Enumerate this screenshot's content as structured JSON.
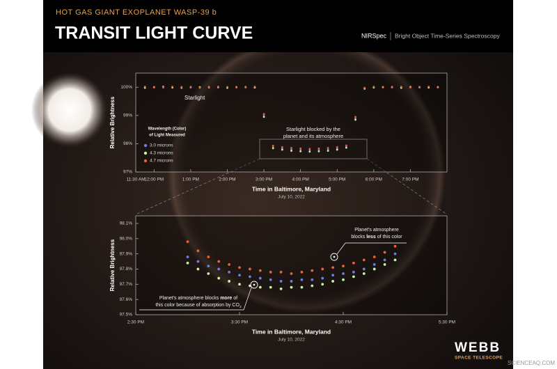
{
  "header": {
    "subtitle": "HOT GAS GIANT EXOPLANET WASP-39 b",
    "title": "TRANSIT LIGHT CURVE",
    "instrument": "NIRSpec",
    "mode": "Bright Object Time-Series Spectroscopy"
  },
  "logo": {
    "name": "WEBB",
    "tagline": "SPACE TELESCOPE"
  },
  "watermark": "SCIENCEAQ.COM",
  "chart_data": [
    {
      "type": "scatter",
      "xlabel": "Time in Baltimore, Maryland",
      "xsublabel": "July 10, 2022",
      "ylabel": "Relative Brightness",
      "legend_title": [
        "Wavelength (Color)",
        "of Light Measured"
      ],
      "annotations": [
        {
          "lines": [
            [
              {
                "text": "Starlight"
              }
            ]
          ]
        },
        {
          "lines": [
            [
              {
                "text": "Starlight blocked by the"
              }
            ],
            [
              {
                "text": "planet and its atmosphere"
              }
            ]
          ]
        }
      ],
      "xlim": [
        11.5,
        20.0
      ],
      "ylim": [
        97,
        100.5
      ],
      "xticks": [
        {
          "value": 11.5,
          "label": "11:30 AM"
        },
        {
          "value": 12,
          "label": "12:00 PM"
        },
        {
          "value": 13,
          "label": "1:00 PM"
        },
        {
          "value": 14,
          "label": "2:00 PM"
        },
        {
          "value": 15,
          "label": "3:00 PM"
        },
        {
          "value": 16,
          "label": "4:00 PM"
        },
        {
          "value": 17,
          "label": "5:00 PM"
        },
        {
          "value": 18,
          "label": "6:00 PM"
        },
        {
          "value": 19,
          "label": "7:00 PM"
        }
      ],
      "yticks": [
        {
          "value": 97,
          "label": "97%"
        },
        {
          "value": 98,
          "label": "98%"
        },
        {
          "value": 99,
          "label": "99%"
        },
        {
          "value": 100,
          "label": "100%"
        }
      ],
      "x": [
        11.75,
        12,
        12.25,
        12.5,
        12.75,
        13,
        13.25,
        13.5,
        13.75,
        14,
        14.25,
        14.5,
        14.75,
        15,
        15.25,
        15.5,
        15.75,
        16,
        16.25,
        16.5,
        16.75,
        17,
        17.25,
        17.5,
        17.75,
        18,
        18.25,
        18.5,
        18.75,
        19,
        19.25,
        19.5,
        19.75
      ],
      "series": [
        {
          "name": "3.0 microns",
          "color": "#6f7de0",
          "values": [
            100.0,
            100.01,
            99.99,
            100.0,
            100.01,
            99.99,
            100.0,
            100.02,
            99.99,
            100.0,
            100.01,
            99.99,
            100.0,
            99.0,
            97.88,
            97.83,
            97.8,
            97.78,
            97.77,
            97.78,
            97.8,
            97.83,
            97.9,
            98.9,
            99.97,
            100.0,
            100.01,
            99.99,
            100.0,
            100.02,
            99.99,
            100.0,
            100.01
          ]
        },
        {
          "name": "4.3 microns",
          "color": "#c4f2a8",
          "values": [
            99.98,
            100.0,
            100.02,
            99.99,
            99.98,
            100.01,
            100.0,
            99.99,
            100.01,
            99.98,
            100.0,
            100.01,
            99.99,
            98.95,
            97.84,
            97.79,
            97.75,
            97.73,
            97.72,
            97.73,
            97.75,
            97.79,
            97.86,
            98.85,
            99.95,
            99.99,
            100.0,
            100.01,
            99.98,
            100.0,
            100.01,
            99.99,
            100.0
          ]
        },
        {
          "name": "4.7 microns",
          "color": "#e8603c",
          "values": [
            100.02,
            99.99,
            100.0,
            100.02,
            100.0,
            100.01,
            99.98,
            100.0,
            100.02,
            100.01,
            99.99,
            100.0,
            100.02,
            99.05,
            97.93,
            97.88,
            97.85,
            97.83,
            97.82,
            97.83,
            97.85,
            97.88,
            97.94,
            98.95,
            99.98,
            100.02,
            99.99,
            100.0,
            100.02,
            99.99,
            100.01,
            100.02,
            99.99
          ]
        }
      ]
    },
    {
      "type": "scatter",
      "xlabel": "Time in Baltimore, Maryland",
      "xsublabel": "July 10, 2022",
      "ylabel": "Relative Brightness",
      "annotations": [
        {
          "lines": [
            [
              {
                "text": "Planet's atmosphere"
              }
            ],
            [
              {
                "text": "blocks "
              },
              {
                "text": "less",
                "bold": true
              },
              {
                "text": " of this color"
              }
            ]
          ]
        },
        {
          "lines": [
            [
              {
                "text": "Planet's atmosphere blocks "
              },
              {
                "text": "more",
                "bold": true
              },
              {
                "text": " of"
              }
            ],
            [
              {
                "text": "this color because of absorption by CO"
              },
              {
                "text": "2",
                "sub": true
              }
            ]
          ]
        }
      ],
      "xlim": [
        14.5,
        17.5
      ],
      "ylim": [
        97.5,
        98.15
      ],
      "xticks": [
        {
          "value": 14.5,
          "label": "2:30 PM"
        },
        {
          "value": 15.5,
          "label": "3:30 PM"
        },
        {
          "value": 16.5,
          "label": "4:30 PM"
        },
        {
          "value": 17.5,
          "label": "5:30 PM"
        }
      ],
      "yticks": [
        {
          "value": 97.5,
          "label": "97.5%"
        },
        {
          "value": 97.6,
          "label": "97.6%"
        },
        {
          "value": 97.7,
          "label": "97.7%"
        },
        {
          "value": 97.8,
          "label": "97.8%"
        },
        {
          "value": 97.9,
          "label": "97.9%"
        },
        {
          "value": 98.0,
          "label": "98.0%"
        },
        {
          "value": 98.1,
          "label": "98.1%"
        }
      ],
      "x": [
        15.0,
        15.1,
        15.2,
        15.3,
        15.4,
        15.5,
        15.6,
        15.7,
        15.8,
        15.9,
        16.0,
        16.1,
        16.2,
        16.3,
        16.4,
        16.5,
        16.6,
        16.7,
        16.8,
        16.9,
        17.0
      ],
      "series": [
        {
          "name": "3.0 microns",
          "color": "#6f7de0",
          "values": [
            97.88,
            97.85,
            97.82,
            97.8,
            97.78,
            97.76,
            97.75,
            97.74,
            97.73,
            97.72,
            97.72,
            97.73,
            97.73,
            97.74,
            97.76,
            97.77,
            97.78,
            97.8,
            97.83,
            97.86,
            97.9
          ]
        },
        {
          "name": "4.3 microns",
          "color": "#c4f2a8",
          "values": [
            97.84,
            97.8,
            97.77,
            97.74,
            97.72,
            97.7,
            97.69,
            97.68,
            97.68,
            97.67,
            97.68,
            97.68,
            97.69,
            97.7,
            97.72,
            97.73,
            97.75,
            97.77,
            97.8,
            97.83,
            97.86
          ]
        },
        {
          "name": "4.7 microns",
          "color": "#e8603c",
          "values": [
            97.98,
            97.92,
            97.88,
            97.85,
            97.83,
            97.81,
            97.8,
            97.79,
            97.78,
            97.78,
            97.77,
            97.78,
            97.79,
            97.8,
            97.81,
            97.82,
            97.84,
            97.86,
            97.88,
            97.91,
            97.95
          ]
        }
      ]
    }
  ]
}
